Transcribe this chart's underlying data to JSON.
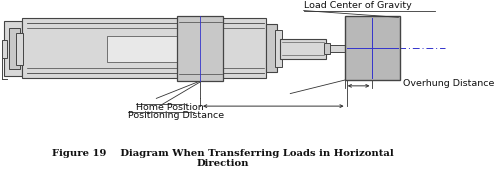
{
  "bg_color": "#ffffff",
  "fig_width": 5.0,
  "fig_height": 1.93,
  "dpi": 100,
  "caption_line1": "Figure 19    Diagram When Transferring Loads in Horizontal",
  "caption_line2": "Direction",
  "label_load_cog": "Load Center of Gravity",
  "label_overhung": "Overhung Distance",
  "label_home": "Home Position",
  "label_positioning": "Positioning Distance",
  "cylinder_color": "#d8d8d8",
  "cylinder_color2": "#c8c8c8",
  "load_box_color": "#b8b8b8",
  "center_line_color": "#3333cc",
  "dim_line_color": "#333333",
  "border_color": "#444444",
  "text_color": "#111111",
  "caption_fontsize": 7.2,
  "label_fontsize": 6.8
}
